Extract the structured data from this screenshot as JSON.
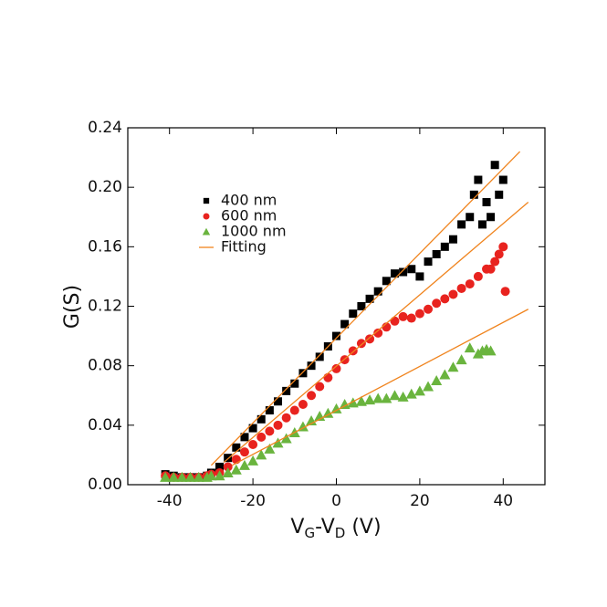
{
  "chart_data": {
    "type": "scatter",
    "ylabel": "G(S)",
    "xlabel": [
      "V",
      "G",
      "-V",
      "D",
      " (V)"
    ],
    "xlim": [
      -50,
      50
    ],
    "xticks": [
      -40,
      -20,
      0,
      20,
      40
    ],
    "ylim": [
      0,
      0.24
    ],
    "yticks": [
      {
        "value": 0,
        "label": "0.00"
      },
      {
        "value": 0.04,
        "label": "0.04"
      },
      {
        "value": 0.08,
        "label": "0.08"
      },
      {
        "value": 0.12,
        "label": "0.12"
      },
      {
        "value": 0.16,
        "label": "0.16"
      },
      {
        "value": 0.2,
        "label": "0.20"
      },
      {
        "value": 0.24,
        "label": "0.24"
      }
    ],
    "legend": "upper left",
    "series": [
      {
        "name": "400 nm",
        "color": "#000000",
        "marker": "square",
        "x": [
          -41,
          -39,
          -37,
          -35,
          -33,
          -31,
          -30,
          -28,
          -26,
          -24,
          -22,
          -20,
          -18,
          -16,
          -14,
          -12,
          -10,
          -8,
          -6,
          -4,
          -2,
          0,
          2,
          4,
          6,
          8,
          10,
          12,
          14,
          16,
          18,
          20,
          22,
          24,
          26,
          28,
          30,
          32,
          33,
          34,
          35,
          36,
          37,
          38,
          39,
          40
        ],
        "values": [
          0.007,
          0.006,
          0.005,
          0.005,
          0.005,
          0.006,
          0.008,
          0.012,
          0.018,
          0.025,
          0.032,
          0.038,
          0.044,
          0.05,
          0.056,
          0.063,
          0.068,
          0.075,
          0.08,
          0.086,
          0.093,
          0.1,
          0.108,
          0.115,
          0.12,
          0.125,
          0.13,
          0.137,
          0.142,
          0.143,
          0.145,
          0.14,
          0.15,
          0.155,
          0.16,
          0.165,
          0.175,
          0.18,
          0.195,
          0.205,
          0.175,
          0.19,
          0.18,
          0.215,
          0.195,
          0.205
        ]
      },
      {
        "name": "600 nm",
        "color": "#e8231f",
        "marker": "circle",
        "x": [
          -41,
          -39,
          -37,
          -35,
          -33,
          -31,
          -30,
          -28,
          -26,
          -24,
          -22,
          -20,
          -18,
          -16,
          -14,
          -12,
          -10,
          -8,
          -6,
          -4,
          -2,
          0,
          2,
          4,
          6,
          8,
          10,
          12,
          14,
          16,
          18,
          20,
          22,
          24,
          26,
          28,
          30,
          32,
          34,
          36,
          37,
          38,
          39,
          40,
          40.5
        ],
        "values": [
          0.006,
          0.005,
          0.005,
          0.005,
          0.005,
          0.006,
          0.007,
          0.008,
          0.012,
          0.017,
          0.022,
          0.027,
          0.032,
          0.036,
          0.04,
          0.045,
          0.05,
          0.054,
          0.06,
          0.066,
          0.072,
          0.078,
          0.084,
          0.09,
          0.095,
          0.098,
          0.102,
          0.106,
          0.11,
          0.113,
          0.112,
          0.115,
          0.118,
          0.122,
          0.125,
          0.128,
          0.132,
          0.135,
          0.14,
          0.145,
          0.145,
          0.15,
          0.155,
          0.16,
          0.13
        ]
      },
      {
        "name": "1000 nm",
        "color": "#6ab43e",
        "marker": "triangle",
        "x": [
          -41,
          -39,
          -37,
          -35,
          -33,
          -31,
          -30,
          -28,
          -26,
          -24,
          -22,
          -20,
          -18,
          -16,
          -14,
          -12,
          -10,
          -8,
          -6,
          -4,
          -2,
          0,
          2,
          4,
          6,
          8,
          10,
          12,
          14,
          16,
          18,
          20,
          22,
          24,
          26,
          28,
          30,
          32,
          34,
          35,
          36,
          37
        ],
        "values": [
          0.005,
          0.005,
          0.005,
          0.005,
          0.005,
          0.005,
          0.006,
          0.006,
          0.008,
          0.01,
          0.013,
          0.016,
          0.02,
          0.024,
          0.028,
          0.031,
          0.035,
          0.039,
          0.043,
          0.046,
          0.048,
          0.051,
          0.054,
          0.055,
          0.056,
          0.057,
          0.058,
          0.058,
          0.06,
          0.059,
          0.061,
          0.063,
          0.066,
          0.07,
          0.074,
          0.079,
          0.084,
          0.092,
          0.088,
          0.09,
          0.091,
          0.09
        ]
      },
      {
        "name": "Fitting",
        "color": "#f0841e",
        "marker": "line",
        "x": [
          -30,
          44,
          null,
          -27,
          46,
          null,
          -25,
          46
        ],
        "values": [
          0.013,
          0.224,
          null,
          0.015,
          0.19,
          null,
          0.013,
          0.118
        ]
      }
    ]
  }
}
